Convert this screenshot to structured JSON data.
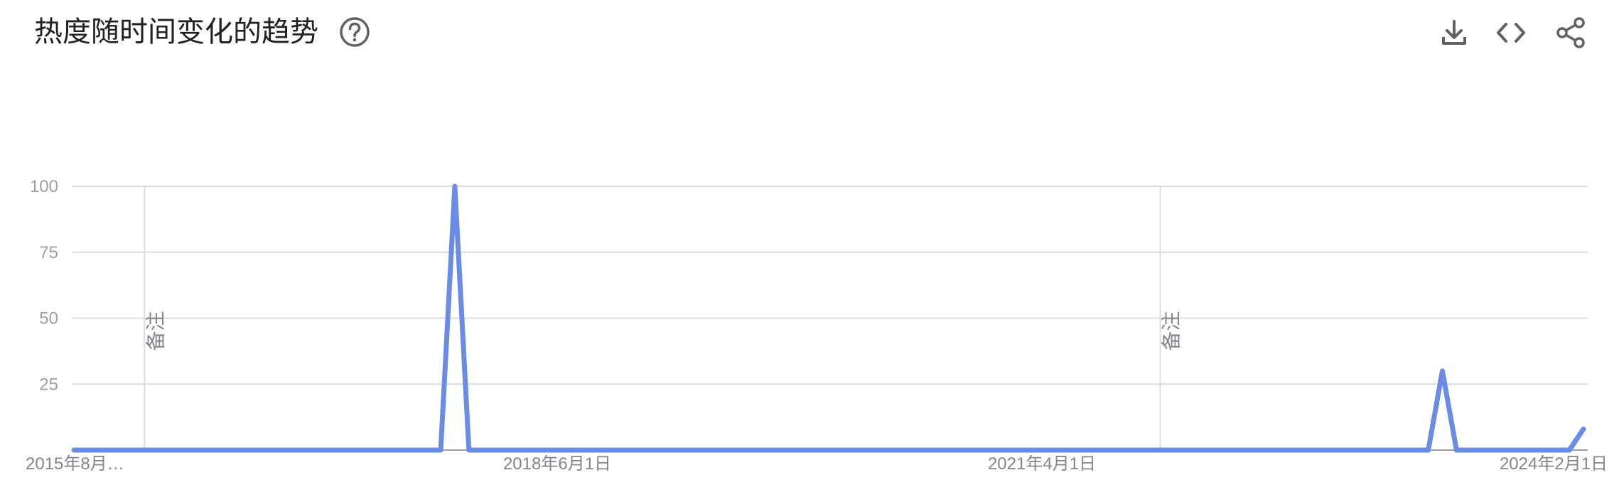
{
  "header": {
    "title": "热度随时间变化的趋势",
    "help_icon": "help-circle-icon",
    "actions": [
      {
        "name": "download-icon"
      },
      {
        "name": "embed-code-icon"
      },
      {
        "name": "share-icon"
      }
    ]
  },
  "colors": {
    "series": "#6a8ce6",
    "grid": "#dadce0",
    "axis": "#9aa0a6",
    "title": "#202124",
    "icon": "#5f6368"
  },
  "chart_data": {
    "type": "line",
    "title": "",
    "xlabel": "",
    "ylabel": "",
    "ylim": [
      0,
      100
    ],
    "yticks": [
      "25",
      "50",
      "75",
      "100"
    ],
    "grid": true,
    "x_tick_labels": [
      "2015年8月…",
      "2018年6月1日",
      "2021年4月1日",
      "2024年2月1日"
    ],
    "annotations": [
      {
        "label": "备注",
        "after_point": 5
      },
      {
        "label": "备注",
        "after_point": 77
      }
    ],
    "series": [
      {
        "values": [
          0,
          0,
          0,
          0,
          0,
          0,
          0,
          0,
          0,
          0,
          0,
          0,
          0,
          0,
          0,
          0,
          0,
          0,
          0,
          0,
          0,
          0,
          0,
          0,
          0,
          0,
          0,
          100,
          0,
          0,
          0,
          0,
          0,
          0,
          0,
          0,
          0,
          0,
          0,
          0,
          0,
          0,
          0,
          0,
          0,
          0,
          0,
          0,
          0,
          0,
          0,
          0,
          0,
          0,
          0,
          0,
          0,
          0,
          0,
          0,
          0,
          0,
          0,
          0,
          0,
          0,
          0,
          0,
          0,
          0,
          0,
          0,
          0,
          0,
          0,
          0,
          0,
          0,
          0,
          0,
          0,
          0,
          0,
          0,
          0,
          0,
          0,
          0,
          0,
          0,
          0,
          0,
          0,
          0,
          0,
          0,
          0,
          30,
          0,
          0,
          0,
          0,
          0,
          0,
          0,
          0,
          0,
          8
        ]
      }
    ]
  }
}
